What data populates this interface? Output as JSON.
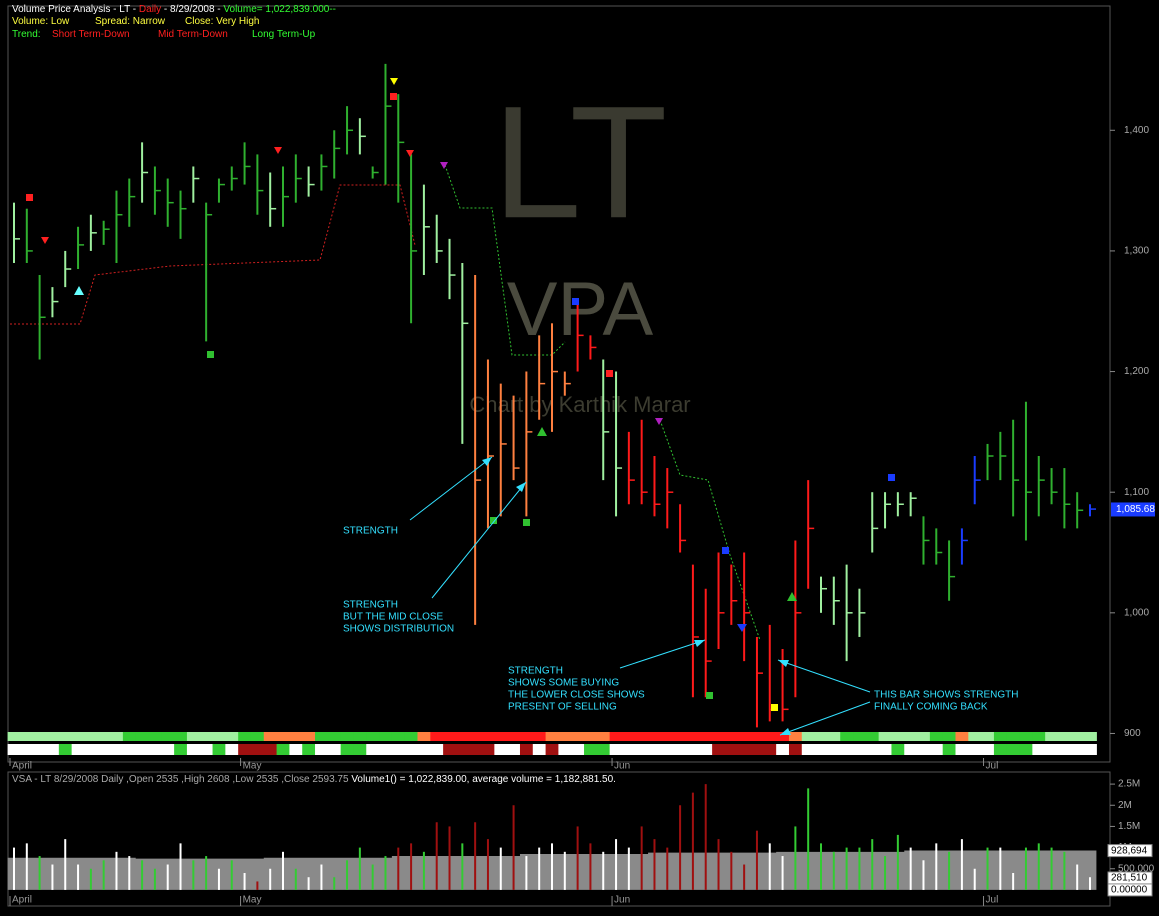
{
  "header": {
    "line1": [
      "Volume Price Analysis - LT - ",
      "Daily",
      " - 8/29/2008 - ",
      "Volume= 1,022,839.000--"
    ],
    "line2": [
      "Volume: Low",
      "Spread: Narrow",
      "Close: Very High"
    ],
    "line3": [
      "Trend:",
      "Short Term-Down",
      "Mid Term-Down",
      "Long Term-Up"
    ],
    "watermark": [
      "LT",
      "VPA",
      "Chart by Karthik Marar"
    ],
    "volume_header": [
      "VSA - LT  8/29/2008  Daily  ,Open 2535 ,High 2608 ,Low 2535 ,Close 2593.75 ",
      "Volume1() = 1,022,839.00, average volume = 1,182,881.50."
    ]
  },
  "annotations": [
    [
      "STRENGTH"
    ],
    [
      "STRENGTH",
      "BUT THE MID CLOSE",
      "SHOWS DISTRIBUTION"
    ],
    [
      "STRENGTH",
      "SHOWS SOME BUYING",
      "THE LOWER CLOSE SHOWS",
      "PRESENT OF SELLING"
    ],
    [
      "THIS BAR SHOWS STRENGTH",
      "FINALLY COMING BACK"
    ]
  ],
  "chart_data": [
    {
      "type": "hlc",
      "categories": [
        "April",
        null,
        null,
        null,
        null,
        null,
        null,
        null,
        null,
        null,
        null,
        null,
        null,
        null,
        null,
        null,
        null,
        null,
        "May",
        null,
        null,
        null,
        null,
        null,
        null,
        null,
        null,
        null,
        null,
        null,
        null,
        null,
        null,
        null,
        null,
        null,
        null,
        null,
        null,
        null,
        null,
        null,
        null,
        null,
        null,
        null,
        null,
        "Jun",
        null,
        null,
        null,
        null,
        null,
        null,
        null,
        null,
        null,
        null,
        null,
        null,
        null,
        null,
        null,
        null,
        null,
        null,
        null,
        null,
        null,
        null,
        null,
        null,
        null,
        null,
        null,
        null,
        "Jul",
        null,
        null,
        null,
        null,
        null,
        null,
        null,
        null
      ],
      "high": [
        1340,
        1335,
        1280,
        1270,
        1300,
        1320,
        1330,
        1325,
        1350,
        1360,
        1390,
        1370,
        1360,
        1350,
        1370,
        1340,
        1360,
        1370,
        1390,
        1380,
        1365,
        1370,
        1380,
        1370,
        1380,
        1400,
        1420,
        1410,
        1370,
        1455,
        1430,
        1380,
        1355,
        1330,
        1310,
        1290,
        1280,
        1210,
        1190,
        1180,
        1200,
        1230,
        1240,
        1200,
        1260,
        1230,
        1210,
        1200,
        1150,
        1160,
        1130,
        1120,
        1090,
        1040,
        1020,
        1050,
        1040,
        1050,
        980,
        990,
        970,
        1060,
        1110,
        1030,
        1030,
        1040,
        1020,
        1100,
        1100,
        1100,
        1100,
        1080,
        1070,
        1060,
        1070,
        1130,
        1140,
        1150,
        1160,
        1175,
        1130,
        1120,
        1120,
        1100,
        1090
      ],
      "low": [
        1290,
        1290,
        1210,
        1245,
        1270,
        1285,
        1300,
        1305,
        1290,
        1320,
        1340,
        1330,
        1320,
        1310,
        1340,
        1225,
        1340,
        1350,
        1355,
        1330,
        1320,
        1320,
        1340,
        1345,
        1350,
        1360,
        1380,
        1380,
        1360,
        1355,
        1340,
        1240,
        1280,
        1290,
        1260,
        1140,
        990,
        1070,
        1080,
        1110,
        1080,
        1160,
        1150,
        1180,
        1200,
        1210,
        1110,
        1080,
        1090,
        1090,
        1080,
        1070,
        1050,
        930,
        930,
        970,
        990,
        960,
        905,
        910,
        910,
        930,
        1020,
        1000,
        990,
        960,
        980,
        1050,
        1070,
        1080,
        1080,
        1040,
        1040,
        1010,
        1040,
        1090,
        1110,
        1110,
        1080,
        1060,
        1080,
        1090,
        1070,
        1070,
        1080
      ],
      "close": [
        1310,
        1300,
        1245,
        1258,
        1285,
        1305,
        1315,
        1318,
        1330,
        1345,
        1365,
        1350,
        1340,
        1335,
        1360,
        1330,
        1355,
        1360,
        1370,
        1350,
        1335,
        1345,
        1360,
        1355,
        1370,
        1385,
        1400,
        1395,
        1365,
        1420,
        1390,
        1300,
        1320,
        1300,
        1280,
        1240,
        1110,
        1130,
        1140,
        1120,
        1150,
        1190,
        1200,
        1190,
        1230,
        1220,
        1150,
        1120,
        1110,
        1100,
        1090,
        1100,
        1060,
        980,
        960,
        1000,
        1010,
        1000,
        950,
        920,
        920,
        1000,
        1070,
        1020,
        1010,
        1000,
        1000,
        1070,
        1090,
        1090,
        1095,
        1060,
        1050,
        1030,
        1060,
        1110,
        1130,
        1130,
        1110,
        1100,
        1110,
        1100,
        1090,
        1085,
        1086
      ],
      "colors": [
        "#a0f0a0",
        "#2fb02f",
        "#2fb02f",
        "#a0f0a0",
        "#a0f0a0",
        "#2fb02f",
        "#a0f0a0",
        "#2fb02f",
        "#2fb02f",
        "#2fb02f",
        "#a0f0a0",
        "#2fb02f",
        "#2fb02f",
        "#2fb02f",
        "#a0f0a0",
        "#2fb02f",
        "#2fb02f",
        "#2fb02f",
        "#2fb02f",
        "#2fb02f",
        "#a0f0a0",
        "#2fb02f",
        "#2fb02f",
        "#a0f0a0",
        "#2fb02f",
        "#2fb02f",
        "#2fb02f",
        "#a0f0a0",
        "#2fb02f",
        "#2fb02f",
        "#2fb02f",
        "#2fb02f",
        "#a0f0a0",
        "#a0f0a0",
        "#a0f0a0",
        "#a0f0a0",
        "#ff8040",
        "#ff8040",
        "#ff8040",
        "#ff8040",
        "#ff8040",
        "#ff8040",
        "#ff8040",
        "#ff8040",
        "#ff1a1a",
        "#ff1a1a",
        "#a0f0a0",
        "#a0f0a0",
        "#ff1a1a",
        "#ff1a1a",
        "#ff1a1a",
        "#ff1a1a",
        "#ff1a1a",
        "#ff1a1a",
        "#ff1a1a",
        "#ff1a1a",
        "#ff1a1a",
        "#ff1a1a",
        "#ff1a1a",
        "#ff1a1a",
        "#ff1a1a",
        "#ff1a1a",
        "#ff1a1a",
        "#a0f0a0",
        "#a0f0a0",
        "#a0f0a0",
        "#a0f0a0",
        "#a0f0a0",
        "#a0f0a0",
        "#a0f0a0",
        "#a0f0a0",
        "#2fb02f",
        "#2fb02f",
        "#2fb02f",
        "#1a3cff",
        "#1a3cff",
        "#2fb02f",
        "#2fb02f",
        "#2fb02f",
        "#2fb02f",
        "#2fb02f",
        "#2fb02f",
        "#2fb02f",
        "#2fb02f",
        "#1a3cff"
      ],
      "ribbon_top": [
        "#a0f0a0",
        "#a0f0a0",
        "#a0f0a0",
        "#a0f0a0",
        "#a0f0a0",
        "#a0f0a0",
        "#a0f0a0",
        "#a0f0a0",
        "#a0f0a0",
        "#33cc33",
        "#33cc33",
        "#33cc33",
        "#33cc33",
        "#33cc33",
        "#a0f0a0",
        "#a0f0a0",
        "#a0f0a0",
        "#a0f0a0",
        "#33cc33",
        "#33cc33",
        "#ff8040",
        "#ff8040",
        "#ff8040",
        "#ff8040",
        "#33cc33",
        "#33cc33",
        "#33cc33",
        "#33cc33",
        "#33cc33",
        "#33cc33",
        "#33cc33",
        "#33cc33",
        "#ff8040",
        "#ff1a1a",
        "#ff1a1a",
        "#ff1a1a",
        "#ff1a1a",
        "#ff1a1a",
        "#ff1a1a",
        "#ff1a1a",
        "#ff1a1a",
        "#ff1a1a",
        "#ff8040",
        "#ff8040",
        "#ff8040",
        "#ff8040",
        "#ff8040",
        "#ff1a1a",
        "#ff1a1a",
        "#ff1a1a",
        "#ff1a1a",
        "#ff1a1a",
        "#ff1a1a",
        "#ff1a1a",
        "#ff1a1a",
        "#ff1a1a",
        "#ff1a1a",
        "#ff1a1a",
        "#ff1a1a",
        "#ff1a1a",
        "#ff1a1a",
        "#ff8040",
        "#a0f0a0",
        "#a0f0a0",
        "#a0f0a0",
        "#33cc33",
        "#33cc33",
        "#33cc33",
        "#a0f0a0",
        "#a0f0a0",
        "#a0f0a0",
        "#a0f0a0",
        "#33cc33",
        "#33cc33",
        "#ff8040",
        "#a0f0a0",
        "#a0f0a0",
        "#33cc33",
        "#33cc33",
        "#33cc33",
        "#33cc33",
        "#a0f0a0",
        "#a0f0a0",
        "#a0f0a0",
        "#a0f0a0"
      ],
      "ribbon_bottom": [
        "#ffffff",
        "#ffffff",
        "#ffffff",
        "#ffffff",
        "#33cc33",
        "#ffffff",
        "#ffffff",
        "#ffffff",
        "#ffffff",
        "#ffffff",
        "#ffffff",
        "#ffffff",
        "#ffffff",
        "#33cc33",
        "#ffffff",
        "#ffffff",
        "#33cc33",
        "#ffffff",
        "#a01010",
        "#a01010",
        "#a01010",
        "#33cc33",
        "#ffffff",
        "#33cc33",
        "#ffffff",
        "#ffffff",
        "#33cc33",
        "#33cc33",
        "#ffffff",
        "#ffffff",
        "#ffffff",
        "#ffffff",
        "#ffffff",
        "#ffffff",
        "#a01010",
        "#a01010",
        "#a01010",
        "#a01010",
        "#ffffff",
        "#ffffff",
        "#a01010",
        "#ffffff",
        "#a01010",
        "#ffffff",
        "#ffffff",
        "#33cc33",
        "#33cc33",
        "#ffffff",
        "#ffffff",
        "#ffffff",
        "#ffffff",
        "#ffffff",
        "#ffffff",
        "#ffffff",
        "#ffffff",
        "#a01010",
        "#a01010",
        "#a01010",
        "#a01010",
        "#a01010",
        "#ffffff",
        "#a01010",
        "#ffffff",
        "#ffffff",
        "#ffffff",
        "#ffffff",
        "#ffffff",
        "#ffffff",
        "#ffffff",
        "#33cc33",
        "#ffffff",
        "#ffffff",
        "#ffffff",
        "#33cc33",
        "#ffffff",
        "#ffffff",
        "#ffffff",
        "#33cc33",
        "#33cc33",
        "#33cc33",
        "#ffffff",
        "#ffffff",
        "#ffffff",
        "#ffffff",
        "#ffffff"
      ],
      "ylim": [
        878,
        1508
      ],
      "yticks": [
        {
          "value": 1400,
          "label": "1,400"
        },
        {
          "value": 1300,
          "label": "1,300"
        },
        {
          "value": 1200,
          "label": "1,200"
        },
        {
          "value": 1100,
          "label": "1,100"
        },
        {
          "value": 1000,
          "label": "1,000"
        },
        900
      ],
      "last_price": {
        "value": 1085.68,
        "label": "1,085.68"
      }
    },
    {
      "type": "bar",
      "values": [
        1000000,
        1100000,
        800000,
        600000,
        1200000,
        600000,
        500000,
        700000,
        900000,
        800000,
        700000,
        500000,
        600000,
        1100000,
        700000,
        800000,
        500000,
        700000,
        400000,
        200000,
        500000,
        900000,
        500000,
        300000,
        600000,
        300000,
        700000,
        1000000,
        600000,
        800000,
        1000000,
        1100000,
        900000,
        1600000,
        1500000,
        1100000,
        1600000,
        1200000,
        1000000,
        2000000,
        800000,
        1000000,
        1100000,
        900000,
        1500000,
        1100000,
        900000,
        1200000,
        1000000,
        1500000,
        1200000,
        1000000,
        2000000,
        2300000,
        2500000,
        1200000,
        900000,
        600000,
        1400000,
        1100000,
        800000,
        1500000,
        2400000,
        1100000,
        900000,
        1000000,
        1000000,
        1200000,
        800000,
        1300000,
        1000000,
        700000,
        1100000,
        900000,
        1200000,
        500000,
        1000000,
        1000000,
        400000,
        1000000,
        1100000,
        1000000,
        900000,
        600000,
        300000
      ],
      "colors": [
        "#ffffff",
        "#ffffff",
        "#33cc33",
        "#ffffff",
        "#ffffff",
        "#ffffff",
        "#33cc33",
        "#33cc33",
        "#ffffff",
        "#ffffff",
        "#33cc33",
        "#33cc33",
        "#ffffff",
        "#ffffff",
        "#33cc33",
        "#33cc33",
        "#ffffff",
        "#33cc33",
        "#ffffff",
        "#a01010",
        "#ffffff",
        "#ffffff",
        "#33cc33",
        "#ffffff",
        "#ffffff",
        "#33cc33",
        "#33cc33",
        "#33cc33",
        "#33cc33",
        "#33cc33",
        "#a01010",
        "#a01010",
        "#33cc33",
        "#a01010",
        "#a01010",
        "#33cc33",
        "#a01010",
        "#a01010",
        "#ffffff",
        "#a01010",
        "#ffffff",
        "#ffffff",
        "#ffffff",
        "#ffffff",
        "#a01010",
        "#a01010",
        "#ffffff",
        "#ffffff",
        "#ffffff",
        "#a01010",
        "#a01010",
        "#a01010",
        "#a01010",
        "#a01010",
        "#a01010",
        "#a01010",
        "#a01010",
        "#a01010",
        "#a01010",
        "#ffffff",
        "#ffffff",
        "#33cc33",
        "#33cc33",
        "#33cc33",
        "#33cc33",
        "#33cc33",
        "#33cc33",
        "#33cc33",
        "#33cc33",
        "#33cc33",
        "#ffffff",
        "#ffffff",
        "#ffffff",
        "#33cc33",
        "#ffffff",
        "#ffffff",
        "#33cc33",
        "#ffffff",
        "#ffffff",
        "#33cc33",
        "#33cc33",
        "#33cc33",
        "#33cc33",
        "#ffffff",
        "#ffffff"
      ],
      "average": [
        760000,
        760000,
        760000,
        760000,
        760000,
        760000,
        760000,
        760000,
        760000,
        760000,
        740000,
        740000,
        740000,
        740000,
        740000,
        740000,
        740000,
        740000,
        740000,
        740000,
        760000,
        760000,
        760000,
        760000,
        760000,
        760000,
        760000,
        760000,
        760000,
        760000,
        800000,
        800000,
        800000,
        800000,
        800000,
        800000,
        800000,
        800000,
        800000,
        800000,
        850000,
        850000,
        850000,
        850000,
        850000,
        850000,
        850000,
        850000,
        850000,
        850000,
        880000,
        880000,
        880000,
        880000,
        880000,
        880000,
        880000,
        880000,
        880000,
        880000,
        900000,
        900000,
        900000,
        900000,
        900000,
        900000,
        900000,
        900000,
        900000,
        900000,
        930000,
        930000,
        930000,
        930000,
        930000,
        930000,
        930000,
        930000,
        930000,
        930000,
        930000,
        930000,
        930000,
        930000,
        930000
      ],
      "average_color": "#8a8a8a",
      "ylim": [
        -380000,
        2786000
      ],
      "yticks": [
        {
          "value": 2500000,
          "label": "2.5M"
        },
        {
          "value": 2000000,
          "label": "2M"
        },
        {
          "value": 1500000,
          "label": "1.5M"
        },
        {
          "value": 1000000,
          "label": "1M"
        },
        {
          "value": 500000,
          "label": "500,000"
        }
      ],
      "last_values": [
        {
          "value": 928694,
          "label": "928,694"
        },
        {
          "value": 281510,
          "label": "281,510"
        },
        {
          "value": 0,
          "label": "0.00000"
        }
      ]
    }
  ]
}
